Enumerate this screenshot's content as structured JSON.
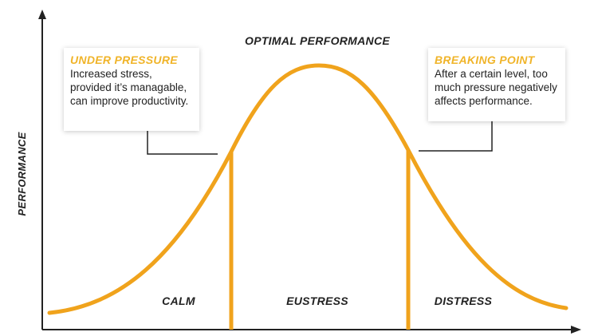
{
  "colors": {
    "curve": "#f0a31c",
    "accent_text": "#f0b429",
    "axis": "#222222",
    "connector": "#222222"
  },
  "diagram": {
    "y_axis_label": "PERFORMANCE",
    "peak_label": "OPTIMAL PERFORMANCE",
    "zones": [
      {
        "name": "calm",
        "label": "CALM"
      },
      {
        "name": "eustress",
        "label": "EUSTRESS"
      },
      {
        "name": "distress",
        "label": "DISTRESS"
      }
    ],
    "callouts": {
      "under_pressure": {
        "title": "UNDER PRESSURE",
        "text": "Increased stress, provided it’s managable, can improve productivity."
      },
      "breaking_point": {
        "title": "BREAKING POINT",
        "text": "After a certain level, too much pressure negatively affects performance."
      }
    }
  }
}
